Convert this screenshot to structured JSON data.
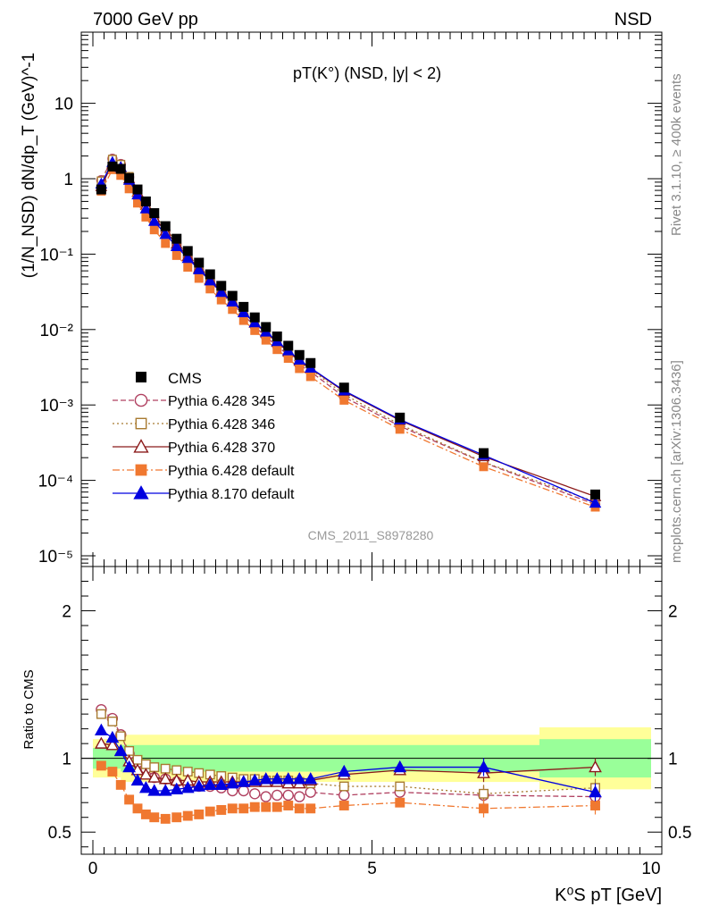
{
  "header": {
    "left": "7000 GeV pp",
    "right": "NSD"
  },
  "side_labels": {
    "top": "Rivet 3.1.10, ≥ 400k events",
    "bottom": "mcplots.cern.ch [arXiv:1306.3436]"
  },
  "chart_data": {
    "type": "scatter",
    "title": "pT(K°) (NSD, |y| < 2)",
    "watermark": "CMS_2011_S8978280",
    "xlabel": "K⁰S pT [GeV]",
    "ylabel": "(1/N_NSD) dN/dp_T (GeV)^-1",
    "ratio_ylabel": "Ratio to CMS",
    "xlim": [
      -0.2,
      10
    ],
    "ylim": [
      8e-06,
      90
    ],
    "ratio_ylim": [
      0.35,
      2.3
    ],
    "log_y": true,
    "x_ticks": [
      0,
      5,
      10
    ],
    "y_tick_labels": [
      "10",
      "1",
      "10⁻¹",
      "10⁻²",
      "10⁻³",
      "10⁻⁴",
      "10⁻⁵"
    ],
    "ratio_ticks": [
      0.5,
      1,
      2
    ],
    "x": [
      0.15,
      0.35,
      0.5,
      0.65,
      0.8,
      0.95,
      1.1,
      1.3,
      1.5,
      1.7,
      1.9,
      2.1,
      2.3,
      2.5,
      2.7,
      2.9,
      3.1,
      3.3,
      3.5,
      3.7,
      3.9,
      4.5,
      5.5,
      7.0,
      9.0
    ],
    "cms": [
      0.72,
      1.45,
      1.35,
      1.02,
      0.72,
      0.5,
      0.35,
      0.235,
      0.16,
      0.11,
      0.077,
      0.054,
      0.038,
      0.028,
      0.02,
      0.0145,
      0.0108,
      0.0081,
      0.0061,
      0.0046,
      0.0036,
      0.0017,
      0.00068,
      0.00023,
      6.5e-05
    ],
    "cms_err": [
      0.04,
      0.04,
      0.04,
      0.04,
      0.04,
      0.04,
      0.04,
      0.04,
      0.04,
      0.04,
      0.04,
      0.04,
      0.04,
      0.05,
      0.05,
      0.05,
      0.05,
      0.05,
      0.05,
      0.05,
      0.05,
      0.06,
      0.06,
      0.07,
      0.07
    ],
    "band_outer": [
      [
        0,
        0.5,
        0.13
      ],
      [
        0.5,
        8,
        0.16
      ],
      [
        8,
        10,
        0.21
      ]
    ],
    "band_inner": [
      [
        0,
        0.5,
        0.07
      ],
      [
        0.5,
        8,
        0.09
      ],
      [
        8,
        10,
        0.13
      ]
    ],
    "series": [
      {
        "name": "Pythia 6.428 345",
        "color": "#b04060",
        "marker": "circle-open",
        "dash": "6,3",
        "ratio": [
          1.33,
          1.27,
          1.16,
          1.03,
          0.97,
          0.93,
          0.87,
          0.86,
          0.84,
          0.82,
          0.81,
          0.81,
          0.8,
          0.78,
          0.78,
          0.76,
          0.74,
          0.75,
          0.75,
          0.74,
          0.77,
          0.75,
          0.77,
          0.75,
          0.74
        ]
      },
      {
        "name": "Pythia 6.428 346",
        "color": "#a87a30",
        "marker": "square-open",
        "dash": "2,3",
        "ratio": [
          1.3,
          1.25,
          1.15,
          1.05,
          0.99,
          0.96,
          0.94,
          0.93,
          0.92,
          0.91,
          0.9,
          0.89,
          0.88,
          0.87,
          0.86,
          0.86,
          0.85,
          0.85,
          0.85,
          0.84,
          0.83,
          0.81,
          0.81,
          0.76,
          0.8
        ]
      },
      {
        "name": "Pythia 6.428 370",
        "color": "#8b1a1a",
        "marker": "triangle-open",
        "dash": "",
        "ratio": [
          1.1,
          1.09,
          1.05,
          0.98,
          0.92,
          0.89,
          0.87,
          0.86,
          0.85,
          0.85,
          0.84,
          0.84,
          0.84,
          0.84,
          0.84,
          0.84,
          0.84,
          0.84,
          0.83,
          0.83,
          0.85,
          0.89,
          0.92,
          0.9,
          0.94
        ]
      },
      {
        "name": "Pythia 6.428 default",
        "color": "#f07830",
        "marker": "square-filled",
        "dash": "8,3,2,3",
        "ratio": [
          0.95,
          0.91,
          0.82,
          0.72,
          0.66,
          0.62,
          0.6,
          0.59,
          0.6,
          0.61,
          0.62,
          0.64,
          0.65,
          0.66,
          0.66,
          0.67,
          0.67,
          0.67,
          0.68,
          0.66,
          0.66,
          0.68,
          0.7,
          0.66,
          0.68
        ]
      },
      {
        "name": "Pythia 8.170 default",
        "color": "#0000e0",
        "marker": "triangle-filled",
        "dash": "",
        "ratio": [
          1.19,
          1.14,
          1.05,
          0.94,
          0.85,
          0.8,
          0.78,
          0.78,
          0.79,
          0.8,
          0.81,
          0.82,
          0.82,
          0.83,
          0.84,
          0.85,
          0.86,
          0.86,
          0.86,
          0.86,
          0.86,
          0.91,
          0.94,
          0.94,
          0.77
        ]
      }
    ]
  }
}
